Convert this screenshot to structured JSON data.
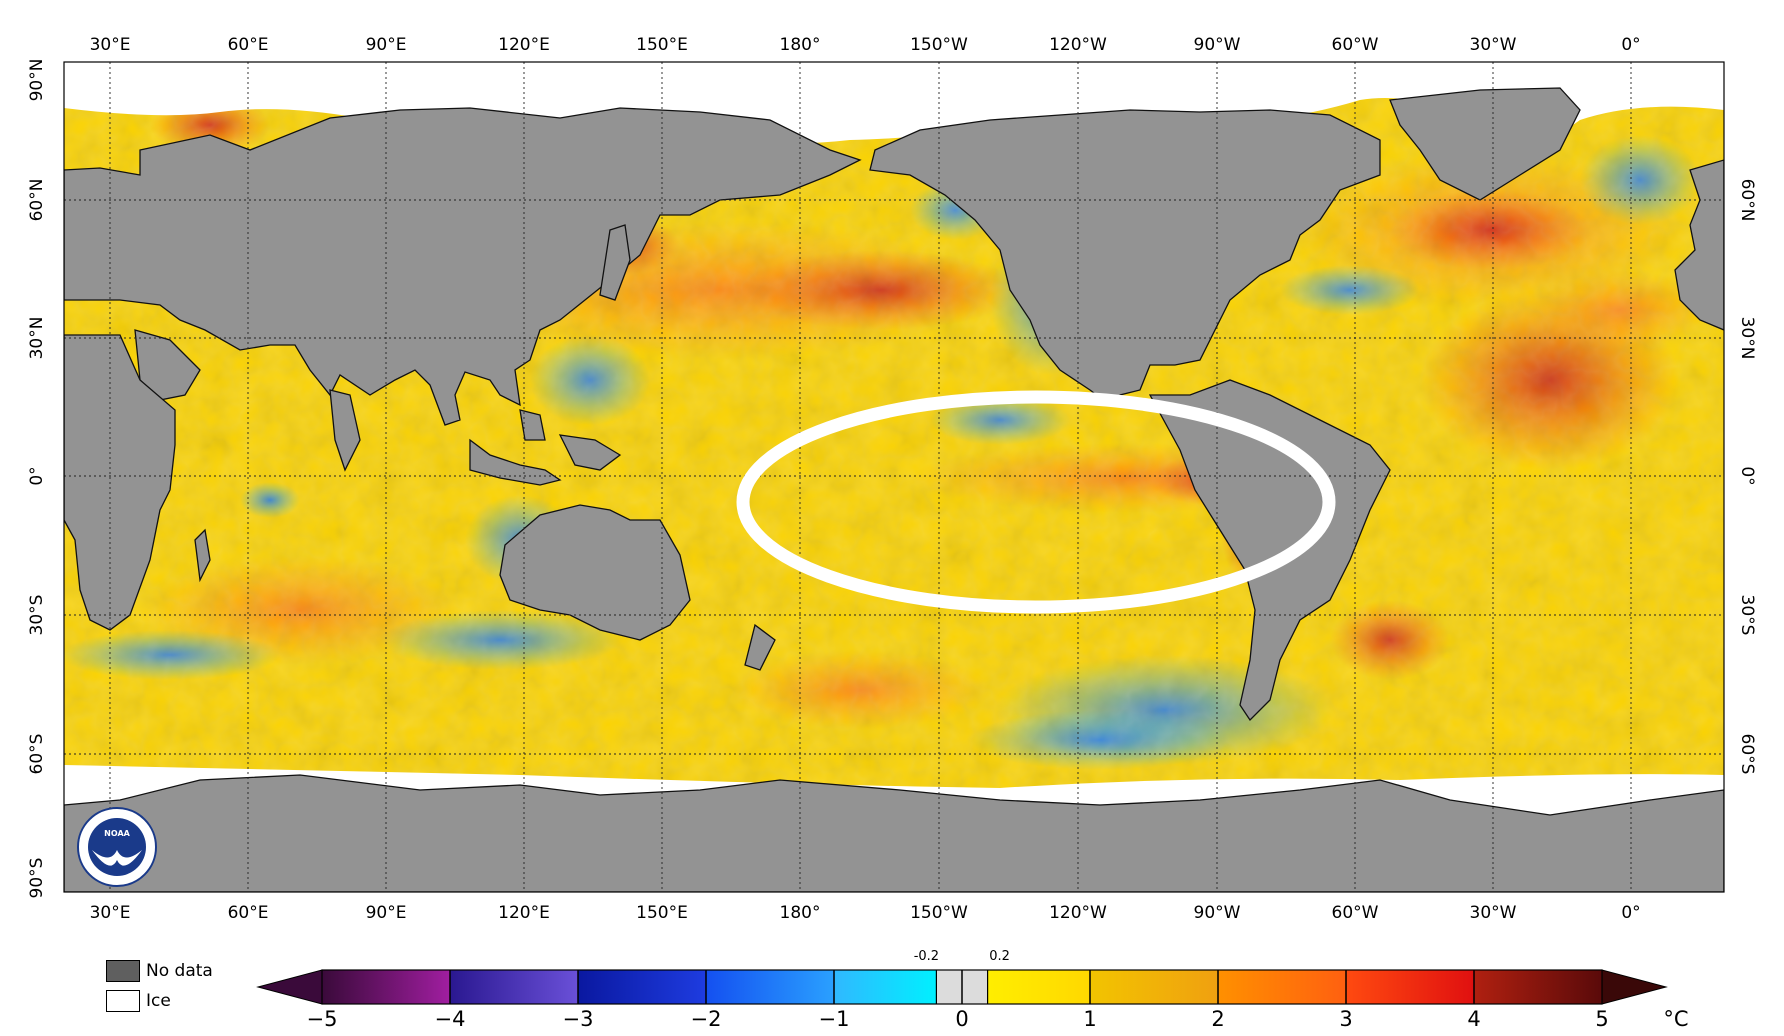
{
  "map": {
    "lon_labels": [
      "30°E",
      "60°E",
      "90°E",
      "120°E",
      "150°E",
      "180°",
      "150°W",
      "120°W",
      "90°W",
      "60°W",
      "30°W",
      "0°"
    ],
    "lat_labels_left": [
      "90°N",
      "60°N",
      "30°N",
      "0°",
      "30°S",
      "60°S",
      "90°S"
    ],
    "lat_labels_right": [
      "60°N",
      "30°N",
      "0°",
      "30°S",
      "60°S"
    ],
    "highlight": "ellipse around the eastern equatorial Pacific",
    "colors": {
      "land": "#939393",
      "ice": "#ffffff",
      "highlight": "#ffffff"
    }
  },
  "legend": {
    "no_data_label": "No data",
    "ice_label": "Ice",
    "no_data_color": "#5f5f5f",
    "ice_color": "#ffffff"
  },
  "colorbar": {
    "min": -5,
    "max": 5,
    "ticks": [
      "−5",
      "−4",
      "−3",
      "−2",
      "−1",
      "0",
      "1",
      "2",
      "3",
      "4",
      "5"
    ],
    "small_ticks": [
      "-0.2",
      "0.2"
    ],
    "unit": "°C",
    "segments": [
      {
        "from": -5,
        "to": -4,
        "color_a": "#3a0a3a",
        "color_b": "#a01ea0"
      },
      {
        "from": -4,
        "to": -3,
        "color_a": "#2a1890",
        "color_b": "#6a50d8"
      },
      {
        "from": -3,
        "to": -2,
        "color_a": "#0a18a0",
        "color_b": "#1e3ce0"
      },
      {
        "from": -2,
        "to": -1,
        "color_a": "#1450f0",
        "color_b": "#2aa0ff"
      },
      {
        "from": -1,
        "to": -0.2,
        "color_a": "#30b8ff",
        "color_b": "#00f0ff"
      },
      {
        "from": -0.2,
        "to": 0.2,
        "color_a": "#dcdcdc",
        "color_b": "#dcdcdc"
      },
      {
        "from": 0.2,
        "to": 1,
        "color_a": "#ffee00",
        "color_b": "#ffd800"
      },
      {
        "from": 1,
        "to": 2,
        "color_a": "#f2c400",
        "color_b": "#f0a010"
      },
      {
        "from": 2,
        "to": 3,
        "color_a": "#ff9000",
        "color_b": "#ff6010"
      },
      {
        "from": 3,
        "to": 4,
        "color_a": "#ff4a10",
        "color_b": "#e01010"
      },
      {
        "from": 4,
        "to": 5,
        "color_a": "#b02010",
        "color_b": "#5a0a0a"
      }
    ]
  }
}
